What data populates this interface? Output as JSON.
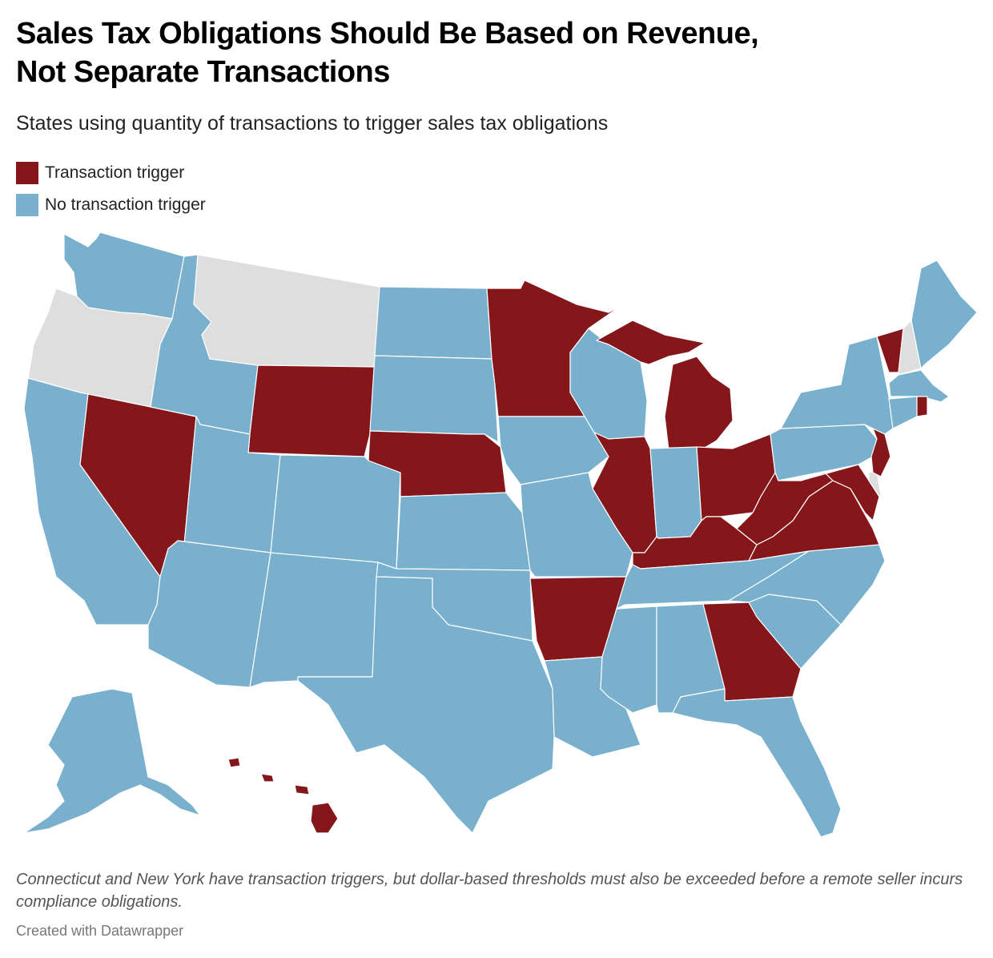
{
  "title_line1": "Sales Tax Obligations Should Be Based on Revenue,",
  "title_line2": "Not Separate Transactions",
  "subtitle": "States using quantity of transactions to trigger sales tax obligations",
  "legend": [
    {
      "label": "Transaction trigger",
      "color": "#85161a"
    },
    {
      "label": "No transaction trigger",
      "color": "#79b0cd"
    }
  ],
  "colors": {
    "transaction_trigger": "#85161a",
    "no_transaction_trigger": "#79b0cd",
    "no_sales_tax": "#dedede"
  },
  "map_data": {
    "transaction_trigger": [
      "NV",
      "WY",
      "NE",
      "MN",
      "MI",
      "IL",
      "AR",
      "GA",
      "KY",
      "OH",
      "WV",
      "VA",
      "MD",
      "NJ",
      "VT",
      "RI",
      "HI"
    ],
    "no_transaction_trigger": [
      "WA",
      "ID",
      "CA",
      "UT",
      "AZ",
      "CO",
      "NM",
      "ND",
      "SD",
      "KS",
      "OK",
      "TX",
      "IA",
      "MO",
      "LA",
      "WI",
      "IN",
      "TN",
      "MS",
      "AL",
      "FL",
      "SC",
      "NC",
      "PA",
      "NY",
      "ME",
      "MA",
      "CT",
      "AK"
    ],
    "no_sales_tax": [
      "OR",
      "MT",
      "NH",
      "DE"
    ]
  },
  "note": "Connecticut and New York have transaction triggers, but dollar-based thresholds must also be exceeded before a remote seller incurs compliance obligations.",
  "credit": "Created with Datawrapper"
}
